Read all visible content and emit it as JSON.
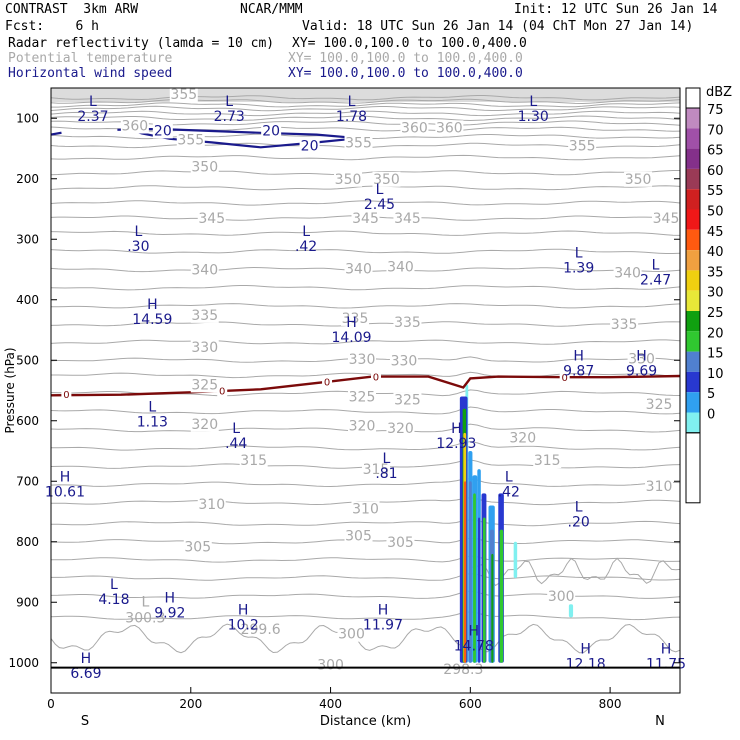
{
  "header": {
    "line1_left": "CONTRAST  3km ARW",
    "line1_mid": "NCAR/MMM",
    "line1_right": "Init: 12 UTC Sun 26 Jan 14",
    "line2_left": "Fcst:    6 h",
    "line2_right": "Valid: 18 UTC Sun 26 Jan 14 (04 ChT Mon 27 Jan 14)",
    "field1_name": "Radar reflectivity (lamda = 10 cm)",
    "field1_xy": "XY= 100.0,100.0 to 100.0,400.0",
    "field2_name": "Potential temperature",
    "field2_xy": "XY= 100.0,100.0 to 100.0,400.0",
    "field3_name": "Horizontal wind speed",
    "field3_xy": "XY= 100.0,100.0 to 100.0,400.0"
  },
  "colors": {
    "theta": "#a9a9a9",
    "wind": "#1a1a8c",
    "zero_line": "#7b0a0a"
  },
  "chart_data": {
    "type": "heatmap",
    "xlabel": "Distance (km)",
    "ylabel": "Pressure (hPa)",
    "xlim": [
      0,
      900
    ],
    "ylim": [
      1050,
      50
    ],
    "x_ticks": [
      "0",
      "200",
      "400",
      "600",
      "800"
    ],
    "x_tick_values": [
      0,
      200,
      400,
      600,
      800
    ],
    "y_ticks": [
      "100",
      "200",
      "300",
      "400",
      "500",
      "600",
      "700",
      "800",
      "900",
      "1000"
    ],
    "y_tick_values": [
      100,
      200,
      300,
      400,
      500,
      600,
      700,
      800,
      900,
      1000
    ],
    "x_end_labels": {
      "left": "S",
      "right": "N"
    },
    "colorbar": {
      "unit": "dBZ",
      "levels": [
        "75",
        "70",
        "65",
        "60",
        "55",
        "50",
        "45",
        "40",
        "35",
        "30",
        "25",
        "20",
        "15",
        "10",
        "5",
        "0"
      ],
      "colors": [
        "#c08ac0",
        "#a050a8",
        "#84308a",
        "#9a3a56",
        "#d02020",
        "#f01818",
        "#ff5a10",
        "#f0a040",
        "#f0d010",
        "#e8e838",
        "#10a010",
        "#30c830",
        "#5080d0",
        "#2838d0",
        "#30a0f0",
        "#80f0f0"
      ]
    },
    "theta_labels": [
      {
        "value": "360",
        "x": 120,
        "p": 112
      },
      {
        "value": "360",
        "x": 520,
        "p": 115
      },
      {
        "value": "360",
        "x": 570,
        "p": 115
      },
      {
        "value": "355",
        "x": 190,
        "p": 60
      },
      {
        "value": "355",
        "x": 200,
        "p": 135
      },
      {
        "value": "355",
        "x": 440,
        "p": 140
      },
      {
        "value": "355",
        "x": 760,
        "p": 145
      },
      {
        "value": "350",
        "x": 220,
        "p": 180
      },
      {
        "value": "350",
        "x": 425,
        "p": 200
      },
      {
        "value": "350",
        "x": 480,
        "p": 200
      },
      {
        "value": "350",
        "x": 840,
        "p": 200
      },
      {
        "value": "345",
        "x": 230,
        "p": 265
      },
      {
        "value": "345",
        "x": 450,
        "p": 265
      },
      {
        "value": "345",
        "x": 510,
        "p": 265
      },
      {
        "value": "345",
        "x": 880,
        "p": 265
      },
      {
        "value": "340",
        "x": 220,
        "p": 350
      },
      {
        "value": "340",
        "x": 440,
        "p": 348
      },
      {
        "value": "340",
        "x": 500,
        "p": 345
      },
      {
        "value": "340",
        "x": 825,
        "p": 355
      },
      {
        "value": "335",
        "x": 220,
        "p": 425
      },
      {
        "value": "335",
        "x": 435,
        "p": 430
      },
      {
        "value": "335",
        "x": 510,
        "p": 437
      },
      {
        "value": "335",
        "x": 820,
        "p": 440
      },
      {
        "value": "330",
        "x": 220,
        "p": 478
      },
      {
        "value": "330",
        "x": 445,
        "p": 498
      },
      {
        "value": "330",
        "x": 505,
        "p": 500
      },
      {
        "value": "330",
        "x": 845,
        "p": 497
      },
      {
        "value": "325",
        "x": 220,
        "p": 540
      },
      {
        "value": "325",
        "x": 445,
        "p": 560
      },
      {
        "value": "325",
        "x": 510,
        "p": 565
      },
      {
        "value": "325",
        "x": 870,
        "p": 572
      },
      {
        "value": "320",
        "x": 220,
        "p": 605
      },
      {
        "value": "320",
        "x": 445,
        "p": 608
      },
      {
        "value": "320",
        "x": 500,
        "p": 612
      },
      {
        "value": "320",
        "x": 675,
        "p": 628
      },
      {
        "value": "315",
        "x": 290,
        "p": 665
      },
      {
        "value": "315",
        "x": 465,
        "p": 680
      },
      {
        "value": "315",
        "x": 710,
        "p": 665
      },
      {
        "value": "310",
        "x": 230,
        "p": 738
      },
      {
        "value": "310",
        "x": 450,
        "p": 745
      },
      {
        "value": "310",
        "x": 870,
        "p": 708
      },
      {
        "value": "305",
        "x": 210,
        "p": 808
      },
      {
        "value": "305",
        "x": 440,
        "p": 790
      },
      {
        "value": "305",
        "x": 500,
        "p": 800
      },
      {
        "value": "300",
        "x": 730,
        "p": 890
      },
      {
        "value": "300",
        "x": 430,
        "p": 952
      },
      {
        "value": "300",
        "x": 400,
        "p": 1003
      }
    ],
    "theta_extrema": [
      {
        "value": "300.3",
        "x": 135,
        "p": 925,
        "marker": "L"
      },
      {
        "value": "299.6",
        "x": 300,
        "p": 944,
        "marker": ""
      },
      {
        "value": "298.3",
        "x": 590,
        "p": 1010,
        "marker": ""
      }
    ],
    "theta_zero_labels": [
      {
        "value": "0",
        "x": 22,
        "p": 556
      },
      {
        "value": "0",
        "x": 245,
        "p": 550
      },
      {
        "value": "0",
        "x": 395,
        "p": 535
      },
      {
        "value": "0",
        "x": 465,
        "p": 527
      },
      {
        "value": "0",
        "x": 735,
        "p": 528
      }
    ],
    "wind_contour_labels": [
      {
        "value": "20",
        "x": 160,
        "p": 120
      },
      {
        "value": "20",
        "x": 315,
        "p": 120
      },
      {
        "value": "20",
        "x": 370,
        "p": 145
      }
    ],
    "wind_extrema": [
      {
        "type": "L",
        "value": "2.37",
        "x": 60,
        "p": 80
      },
      {
        "type": "L",
        "value": "2.73",
        "x": 255,
        "p": 80
      },
      {
        "type": "L",
        "value": "1.78",
        "x": 430,
        "p": 80
      },
      {
        "type": "L",
        "value": "1.30",
        "x": 690,
        "p": 80
      },
      {
        "type": "L",
        "value": "2.45",
        "x": 470,
        "p": 225
      },
      {
        "type": "L",
        "value": ".30",
        "x": 125,
        "p": 295
      },
      {
        "type": "L",
        "value": ".42",
        "x": 365,
        "p": 295
      },
      {
        "type": "L",
        "value": "1.39",
        "x": 755,
        "p": 330
      },
      {
        "type": "L",
        "value": "2.47",
        "x": 865,
        "p": 350
      },
      {
        "type": "H",
        "value": "14.59",
        "x": 145,
        "p": 415
      },
      {
        "type": "H",
        "value": "14.09",
        "x": 430,
        "p": 445
      },
      {
        "type": "H",
        "value": "9.87",
        "x": 755,
        "p": 500
      },
      {
        "type": "H",
        "value": "9.69",
        "x": 845,
        "p": 500
      },
      {
        "type": "L",
        "value": "1.13",
        "x": 145,
        "p": 585
      },
      {
        "type": "L",
        "value": ".44",
        "x": 265,
        "p": 620
      },
      {
        "type": "H",
        "value": "12.93",
        "x": 580,
        "p": 620
      },
      {
        "type": "L",
        "value": ".81",
        "x": 480,
        "p": 670
      },
      {
        "type": "L",
        "value": ".42",
        "x": 655,
        "p": 700
      },
      {
        "type": "H",
        "value": "10.61",
        "x": 20,
        "p": 700
      },
      {
        "type": "L",
        "value": ".20",
        "x": 755,
        "p": 750
      },
      {
        "type": "L",
        "value": "4.18",
        "x": 90,
        "p": 878
      },
      {
        "type": "H",
        "value": "9.92",
        "x": 170,
        "p": 900
      },
      {
        "type": "H",
        "value": "10.2",
        "x": 275,
        "p": 920
      },
      {
        "type": "H",
        "value": "11.97",
        "x": 475,
        "p": 920
      },
      {
        "type": "H",
        "value": "14.78",
        "x": 605,
        "p": 955
      },
      {
        "type": "H",
        "value": "12.18",
        "x": 765,
        "p": 985
      },
      {
        "type": "H",
        "value": "6.69",
        "x": 50,
        "p": 1000
      },
      {
        "type": "H",
        "value": "11.75",
        "x": 880,
        "p": 985
      }
    ],
    "reflectivity_columns": [
      {
        "x": [
          593,
          597
        ],
        "p": [
          540,
          1000
        ],
        "dbz": 5
      },
      {
        "x": [
          585,
          596
        ],
        "p": [
          560,
          1000
        ],
        "dbz": 15
      },
      {
        "x": [
          589,
          594
        ],
        "p": [
          580,
          1000
        ],
        "dbz": 30
      },
      {
        "x": [
          590,
          594
        ],
        "p": [
          620,
          1000
        ],
        "dbz": 40
      },
      {
        "x": [
          591,
          594
        ],
        "p": [
          700,
          1000
        ],
        "dbz": 50
      },
      {
        "x": [
          597,
          603
        ],
        "p": [
          650,
          1000
        ],
        "dbz": 10
      },
      {
        "x": [
          598,
          602
        ],
        "p": [
          700,
          1000
        ],
        "dbz": 20
      },
      {
        "x": [
          603,
          610
        ],
        "p": [
          690,
          1000
        ],
        "dbz": 10
      },
      {
        "x": [
          604,
          608
        ],
        "p": [
          720,
          1000
        ],
        "dbz": 25
      },
      {
        "x": [
          610,
          615
        ],
        "p": [
          680,
          1000
        ],
        "dbz": 10
      },
      {
        "x": [
          611,
          614
        ],
        "p": [
          760,
          1000
        ],
        "dbz": 15
      },
      {
        "x": [
          616,
          623
        ],
        "p": [
          720,
          1000
        ],
        "dbz": 15
      },
      {
        "x": [
          618,
          622
        ],
        "p": [
          760,
          1000
        ],
        "dbz": 25
      },
      {
        "x": [
          626,
          635
        ],
        "p": [
          740,
          1000
        ],
        "dbz": 10
      },
      {
        "x": [
          628,
          634
        ],
        "p": [
          780,
          1000
        ],
        "dbz": 20
      },
      {
        "x": [
          630,
          633
        ],
        "p": [
          820,
          1000
        ],
        "dbz": 30
      },
      {
        "x": [
          640,
          648
        ],
        "p": [
          720,
          1000
        ],
        "dbz": 15
      },
      {
        "x": [
          642,
          647
        ],
        "p": [
          780,
          1000
        ],
        "dbz": 25
      },
      {
        "x": [
          662,
          667
        ],
        "p": [
          800,
          860
        ],
        "dbz": 5
      },
      {
        "x": [
          741,
          747
        ],
        "p": [
          903,
          925
        ],
        "dbz": 5
      }
    ]
  }
}
